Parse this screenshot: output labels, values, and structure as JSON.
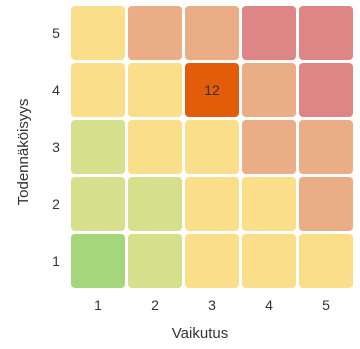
{
  "chart_data": {
    "type": "heatmap",
    "title": "",
    "xlabel": "Vaikutus",
    "ylabel": "Todennäköisyys",
    "x_categories": [
      "1",
      "2",
      "3",
      "4",
      "5"
    ],
    "y_categories": [
      "1",
      "2",
      "3",
      "4",
      "5"
    ],
    "cell_colors": [
      [
        "#a5d57c",
        "#d6df8c",
        "#fbde89",
        "#fbde89",
        "#fbde89"
      ],
      [
        "#d6df8c",
        "#d6df8c",
        "#fbde89",
        "#fbde89",
        "#ebad86"
      ],
      [
        "#d6df8c",
        "#fbde89",
        "#fbde89",
        "#ebad86",
        "#ebad86"
      ],
      [
        "#fbde89",
        "#fbde89",
        "#e25c0a",
        "#ebad86",
        "#de8586"
      ],
      [
        "#fbde89",
        "#ebad86",
        "#ebad86",
        "#de8586",
        "#de8586"
      ]
    ],
    "annotations": [
      {
        "x": "3",
        "y": "4",
        "text": "12"
      }
    ],
    "legend": "none",
    "grid": false
  }
}
